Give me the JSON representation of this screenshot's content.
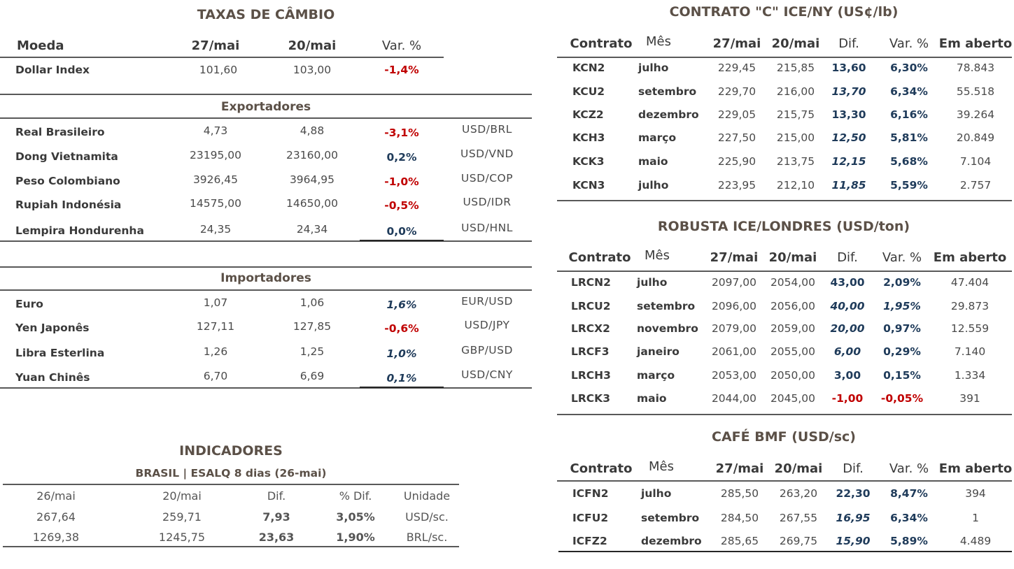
{
  "cambio": {
    "title": "TAXAS DE CÂMBIO",
    "headers": {
      "moeda": "Moeda",
      "d1": "27/mai",
      "d2": "20/mai",
      "var": "Var. %"
    },
    "dollar_index": {
      "name": "Dollar Index",
      "v1": "101,60",
      "v2": "103,00",
      "var": "-1,4%"
    },
    "export_title": "Exportadores",
    "exporters": [
      {
        "name": "Real Brasileiro",
        "v1": "4,73",
        "v2": "4,88",
        "var": "-3,1%",
        "pair": "USD/BRL"
      },
      {
        "name": "Dong Vietnamita",
        "v1": "23195,00",
        "v2": "23160,00",
        "var": "0,2%",
        "pair": "USD/VND"
      },
      {
        "name": "Peso Colombiano",
        "v1": "3926,45",
        "v2": "3964,95",
        "var": "-1,0%",
        "pair": "USD/COP"
      },
      {
        "name": "Rupiah Indonésia",
        "v1": "14575,00",
        "v2": "14650,00",
        "var": "-0,5%",
        "pair": "USD/IDR"
      },
      {
        "name": "Lempira Hondurenha",
        "v1": "24,35",
        "v2": "24,34",
        "var": "0,0%",
        "pair": "USD/HNL"
      }
    ],
    "import_title": "Importadores",
    "importers": [
      {
        "name": "Euro",
        "v1": "1,07",
        "v2": "1,06",
        "var": "1,6%",
        "pair": "EUR/USD"
      },
      {
        "name": "Yen Japonês",
        "v1": "127,11",
        "v2": "127,85",
        "var": "-0,6%",
        "pair": "USD/JPY"
      },
      {
        "name": "Libra Esterlina",
        "v1": "1,26",
        "v2": "1,25",
        "var": "1,0%",
        "pair": "GBP/USD"
      },
      {
        "name": "Yuan Chinês",
        "v1": "6,70",
        "v2": "6,69",
        "var": "0,1%",
        "pair": "USD/CNY"
      }
    ]
  },
  "indicadores": {
    "title": "INDICADORES",
    "subtitle": "BRASIL | ESALQ 8 dias (26-mai)",
    "headers": [
      "26/mai",
      "20/mai",
      "Dif.",
      "% Dif.",
      "Unidade"
    ],
    "rows": [
      [
        "267,64",
        "259,71",
        "7,93",
        "3,05%",
        "USD/sc."
      ],
      [
        "1269,38",
        "1245,75",
        "23,63",
        "1,90%",
        "BRL/sc."
      ]
    ]
  },
  "contrato_c": {
    "title": "CONTRATO \"C\" ICE/NY (US¢/lb)",
    "headers": [
      "Contrato",
      "Mês",
      "27/mai",
      "20/mai",
      "Dif.",
      "Var. %",
      "Em aberto"
    ],
    "rows": [
      [
        "KCN2",
        "julho",
        "229,45",
        "215,85",
        "13,60",
        "6,30%",
        "78.843"
      ],
      [
        "KCU2",
        "setembro",
        "229,70",
        "216,00",
        "13,70",
        "6,34%",
        "55.518"
      ],
      [
        "KCZ2",
        "dezembro",
        "229,05",
        "215,75",
        "13,30",
        "6,16%",
        "39.264"
      ],
      [
        "KCH3",
        "março",
        "227,50",
        "215,00",
        "12,50",
        "5,81%",
        "20.849"
      ],
      [
        "KCK3",
        "maio",
        "225,90",
        "213,75",
        "12,15",
        "5,68%",
        "7.104"
      ],
      [
        "KCN3",
        "julho",
        "223,95",
        "212,10",
        "11,85",
        "5,59%",
        "2.757"
      ]
    ]
  },
  "robusta": {
    "title": "ROBUSTA ICE/LONDRES (USD/ton)",
    "headers": [
      "Contrato",
      "Mês",
      "27/mai",
      "20/mai",
      "Dif.",
      "Var. %",
      "Em aberto"
    ],
    "rows": [
      [
        "LRCN2",
        "julho",
        "2097,00",
        "2054,00",
        "43,00",
        "2,09%",
        "47.404"
      ],
      [
        "LRCU2",
        "setembro",
        "2096,00",
        "2056,00",
        "40,00",
        "1,95%",
        "29.873"
      ],
      [
        "LRCX2",
        "novembro",
        "2079,00",
        "2059,00",
        "20,00",
        "0,97%",
        "12.559"
      ],
      [
        "LRCF3",
        "janeiro",
        "2061,00",
        "2055,00",
        "6,00",
        "0,29%",
        "7.140"
      ],
      [
        "LRCH3",
        "março",
        "2053,00",
        "2050,00",
        "3,00",
        "0,15%",
        "1.334"
      ],
      [
        "LRCK3",
        "maio",
        "2044,00",
        "2045,00",
        "-1,00",
        "-0,05%",
        "391"
      ]
    ]
  },
  "bmf": {
    "title": "CAFÉ BMF (USD/sc)",
    "headers": [
      "Contrato",
      "Mês",
      "27/mai",
      "20/mai",
      "Dif.",
      "Var. %",
      "Em aberto"
    ],
    "rows": [
      [
        "ICFN2",
        "julho",
        "285,50",
        "263,20",
        "22,30",
        "8,47%",
        "394"
      ],
      [
        "ICFU2",
        "setembro",
        "284,50",
        "267,55",
        "16,95",
        "6,34%",
        "1"
      ],
      [
        "ICFZ2",
        "dezembro",
        "285,65",
        "269,75",
        "15,90",
        "5,89%",
        "4.489"
      ]
    ]
  },
  "colors": {
    "positive": "#1f3b5a",
    "negative": "#c00000",
    "title": "#5b5047"
  }
}
